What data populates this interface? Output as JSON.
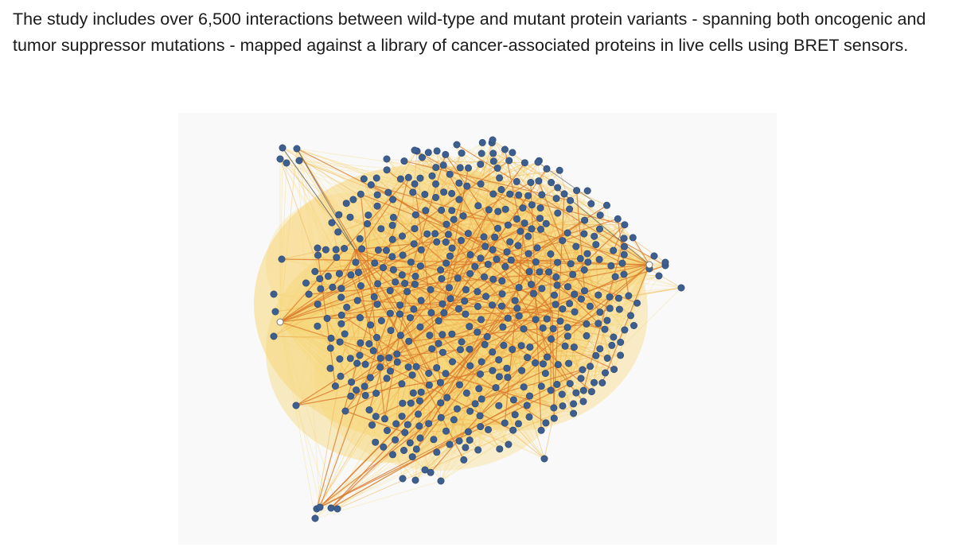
{
  "caption": {
    "text": "The study includes over 6,500 interactions between wild-type and mutant protein variants - spanning both oncogenic and tumor suppressor mutations - mapped against a library of cancer-associated proteins in live cells using BRET sensors."
  },
  "network": {
    "colors": {
      "background": "#f9f9f9",
      "node_fill": "#3d5f8f",
      "node_stroke": "#2c4670",
      "edge_light": "#f7d77a",
      "edge_mid": "#eeb04d",
      "edge_strong": "#d9772a",
      "edge_dark": "#555555"
    },
    "node_icon": "circle-node",
    "hub_nodes": [
      "left-hub",
      "right-hub",
      "upper-left-hub",
      "center-hub"
    ]
  }
}
